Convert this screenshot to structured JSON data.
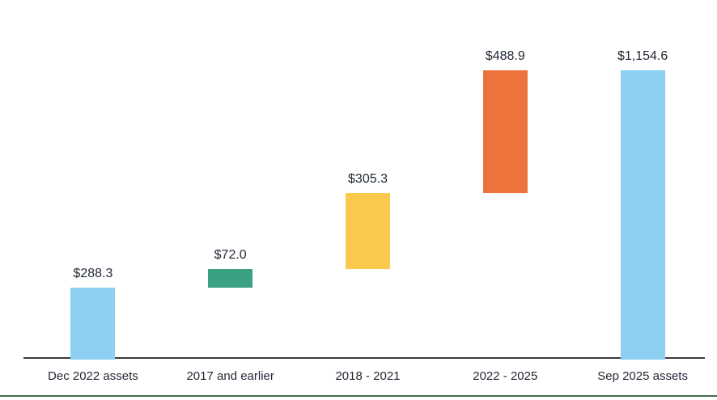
{
  "chart_data": {
    "type": "waterfall",
    "title": "",
    "categories": [
      "Dec 2022 assets",
      "2017 and earlier",
      "2018 - 2021",
      "2022 - 2025",
      "Sep 2025 assets"
    ],
    "values": [
      288.3,
      72.0,
      305.3,
      488.9,
      1154.6
    ],
    "value_labels": [
      "$288.3",
      "$72.0",
      "$305.3",
      "$488.9",
      "$1,154.6"
    ],
    "bar_kinds": [
      "total",
      "increase",
      "increase",
      "increase",
      "total"
    ],
    "bar_colors": [
      "#8DCFF0",
      "#3AA183",
      "#FBC94E",
      "#EC743C",
      "#8DCFF0"
    ],
    "cumulative_starts": [
      0,
      288.3,
      360.3,
      665.6,
      0
    ],
    "cumulative_ends": [
      288.3,
      360.3,
      665.6,
      1154.5,
      1154.6
    ],
    "xlabel": "",
    "ylabel": "",
    "ylim": [
      0,
      1154.6
    ],
    "grid": "off",
    "legend": "none"
  },
  "style": {
    "text_color": "#1F2733",
    "axis_line_color": "#3B3B3B",
    "footer_rule_color": "#456B52",
    "background": "#ffffff"
  }
}
